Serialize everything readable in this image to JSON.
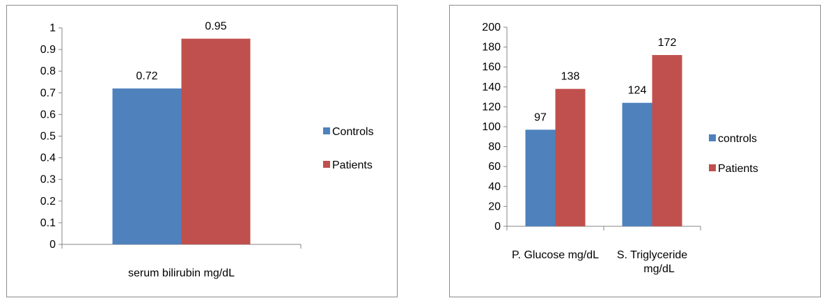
{
  "chart_data": [
    {
      "type": "bar",
      "categories": [
        "serum bilirubin mg/dL"
      ],
      "series": [
        {
          "name": "Controls",
          "values": [
            0.72
          ],
          "color": "#4f81bd"
        },
        {
          "name": "Patients",
          "values": [
            0.95
          ],
          "color": "#c0504d"
        }
      ],
      "data_labels": [
        [
          "0.72"
        ],
        [
          "0.95"
        ]
      ],
      "yticks": [
        "0",
        "0.1",
        "0.2",
        "0.3",
        "0.4",
        "0.5",
        "0.6",
        "0.7",
        "0.8",
        "0.9",
        "1"
      ],
      "ylim": [
        0,
        1
      ],
      "legend_position": "right",
      "grid": false
    },
    {
      "type": "bar",
      "categories": [
        "P. Glucose mg/dL",
        "S. Triglyceride mg/dL"
      ],
      "category_label_lines": [
        [
          "P. Glucose mg/dL"
        ],
        [
          "S. Triglyceride",
          "mg/dL"
        ]
      ],
      "series": [
        {
          "name": "controls",
          "values": [
            97,
            124
          ],
          "color": "#4f81bd"
        },
        {
          "name": "Patients",
          "values": [
            138,
            172
          ],
          "color": "#c0504d"
        }
      ],
      "data_labels": [
        [
          "97",
          "124"
        ],
        [
          "138",
          "172"
        ]
      ],
      "yticks": [
        "0",
        "20",
        "40",
        "60",
        "80",
        "100",
        "120",
        "140",
        "160",
        "180",
        "200"
      ],
      "ylim": [
        0,
        200
      ],
      "legend_position": "right",
      "grid": false
    }
  ]
}
